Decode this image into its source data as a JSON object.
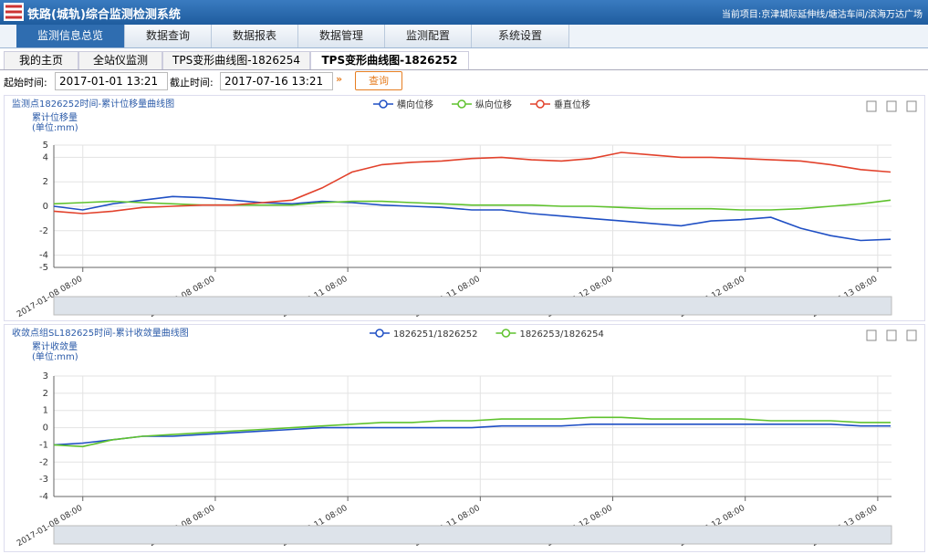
{
  "header": {
    "title": "铁路(城轨)综合监测检测系统",
    "project": "当前项目:京津城际延伸线/塘沽车间/滨海万达广场"
  },
  "nav": [
    "监测信息总览",
    "数据查询",
    "数据报表",
    "数据管理",
    "监测配置",
    "系统设置"
  ],
  "tabs": [
    "我的主页",
    "全站仪监测",
    "TPS变形曲线图-1826254",
    "TPS变形曲线图-1826252"
  ],
  "filter": {
    "start_label": "起始时间:",
    "start": "2017-01-01 13:21",
    "end_label": "截止时间:",
    "end": "2017-07-16 13:21",
    "button": "查询"
  },
  "chart_data": [
    {
      "type": "line",
      "title": "监测点1826252时间-累计位移量曲线图",
      "ylabel": "累计位移量",
      "yunit": "(单位:mm)",
      "x": [
        "2017-01-01 13:21",
        "2017-01-08 08:00",
        "2017-01-15 08:00",
        "2017-01-22 08:00",
        "2017-01-29 08:00",
        "2017-02-05 08:00",
        "2017-02-12 08:00",
        "2017-02-19 08:00",
        "2017-02-26 08:00",
        "2017-03-05 08:00",
        "2017-03-12 08:00",
        "2017-03-19 08:00",
        "2017-03-26 08:00",
        "2017-04-02 08:00",
        "2017-04-09 08:00",
        "2017-04-16 08:00",
        "2017-04-23 08:00",
        "2017-04-30 08:00",
        "2017-05-07 08:00",
        "2017-05-14 08:00",
        "2017-05-21 08:00",
        "2017-05-28 08:00",
        "2017-06-04 08:00",
        "2017-06-11 08:00",
        "2017-06-18 08:00",
        "2017-06-25 08:00",
        "2017-07-02 08:00",
        "2017-07-09 08:00",
        "2017-07-16 08:00"
      ],
      "series": [
        {
          "name": "横向位移",
          "color": "#1f4fc4",
          "values": [
            0,
            -0.3,
            0.2,
            0.5,
            0.8,
            0.7,
            0.5,
            0.3,
            0.2,
            0.4,
            0.3,
            0.1,
            0,
            -0.1,
            -0.3,
            -0.3,
            -0.6,
            -0.8,
            -1,
            -1.2,
            -1.4,
            -1.6,
            -1.2,
            -1.1,
            -0.9,
            -1.8,
            -2.4,
            -2.8,
            -2.7
          ]
        },
        {
          "name": "纵向位移",
          "color": "#5fc22e",
          "values": [
            0.2,
            0.3,
            0.4,
            0.3,
            0.2,
            0.1,
            0.1,
            0.1,
            0.1,
            0.3,
            0.4,
            0.4,
            0.3,
            0.2,
            0.1,
            0.1,
            0.1,
            0,
            0,
            -0.1,
            -0.2,
            -0.2,
            -0.2,
            -0.3,
            -0.3,
            -0.2,
            0,
            0.2,
            0.5
          ]
        },
        {
          "name": "垂直位移",
          "color": "#e2412b",
          "values": [
            -0.4,
            -0.6,
            -0.4,
            -0.1,
            0,
            0.1,
            0.1,
            0.3,
            0.5,
            1.5,
            2.8,
            3.4,
            3.6,
            3.7,
            3.9,
            4,
            3.8,
            3.7,
            3.9,
            4.4,
            4.2,
            4,
            4,
            3.9,
            3.8,
            3.7,
            3.4,
            3,
            2.8
          ]
        }
      ],
      "xlim": [
        "2017-01-01 13:21",
        "2017-07-16 13:21"
      ],
      "xticks": [
        "2017-01-08 08:00",
        "2017-02-08 08:00",
        "2017-03-11 08:00",
        "2017-04-11 08:00",
        "2017-05-12 08:00",
        "2017-06-12 08:00",
        "2017-07-13 08:00"
      ],
      "ylim": [
        -5,
        5
      ],
      "yticks": [
        -5,
        -4,
        -2,
        0,
        2,
        4,
        5
      ],
      "grid": true
    },
    {
      "type": "line",
      "title": "收敛点组SL182625时间-累计收敛量曲线图",
      "ylabel": "累计收敛量",
      "yunit": "(单位:mm)",
      "x": [
        "2017-01-01 13:21",
        "2017-01-08 08:00",
        "2017-01-15 08:00",
        "2017-01-22 08:00",
        "2017-01-29 08:00",
        "2017-02-05 08:00",
        "2017-02-12 08:00",
        "2017-02-19 08:00",
        "2017-02-26 08:00",
        "2017-03-05 08:00",
        "2017-03-12 08:00",
        "2017-03-19 08:00",
        "2017-03-26 08:00",
        "2017-04-02 08:00",
        "2017-04-09 08:00",
        "2017-04-16 08:00",
        "2017-04-23 08:00",
        "2017-04-30 08:00",
        "2017-05-07 08:00",
        "2017-05-14 08:00",
        "2017-05-21 08:00",
        "2017-05-28 08:00",
        "2017-06-04 08:00",
        "2017-06-11 08:00",
        "2017-06-18 08:00",
        "2017-06-25 08:00",
        "2017-07-02 08:00",
        "2017-07-09 08:00",
        "2017-07-16 08:00"
      ],
      "series": [
        {
          "name": "1826251/1826252",
          "color": "#1f4fc4",
          "values": [
            -1,
            -0.9,
            -0.7,
            -0.5,
            -0.5,
            -0.4,
            -0.3,
            -0.2,
            -0.1,
            0,
            0,
            0,
            0,
            0,
            0,
            0.1,
            0.1,
            0.1,
            0.2,
            0.2,
            0.2,
            0.2,
            0.2,
            0.2,
            0.2,
            0.2,
            0.2,
            0.1,
            0.1
          ]
        },
        {
          "name": "1826253/1826254",
          "color": "#5fc22e",
          "values": [
            -1,
            -1.1,
            -0.7,
            -0.5,
            -0.4,
            -0.3,
            -0.2,
            -0.1,
            0,
            0.1,
            0.2,
            0.3,
            0.3,
            0.4,
            0.4,
            0.5,
            0.5,
            0.5,
            0.6,
            0.6,
            0.5,
            0.5,
            0.5,
            0.5,
            0.4,
            0.4,
            0.4,
            0.3,
            0.3
          ]
        }
      ],
      "xlim": [
        "2017-01-01 13:21",
        "2017-07-16 13:21"
      ],
      "xticks": [
        "2017-01-08 08:00",
        "2017-02-08 08:00",
        "2017-03-11 08:00",
        "2017-04-11 08:00",
        "2017-05-12 08:00",
        "2017-06-12 08:00",
        "2017-07-13 08:00"
      ],
      "ylim": [
        -4,
        3
      ],
      "yticks": [
        -4,
        -3,
        -2,
        -1,
        0,
        1,
        2,
        3
      ],
      "grid": true
    }
  ]
}
